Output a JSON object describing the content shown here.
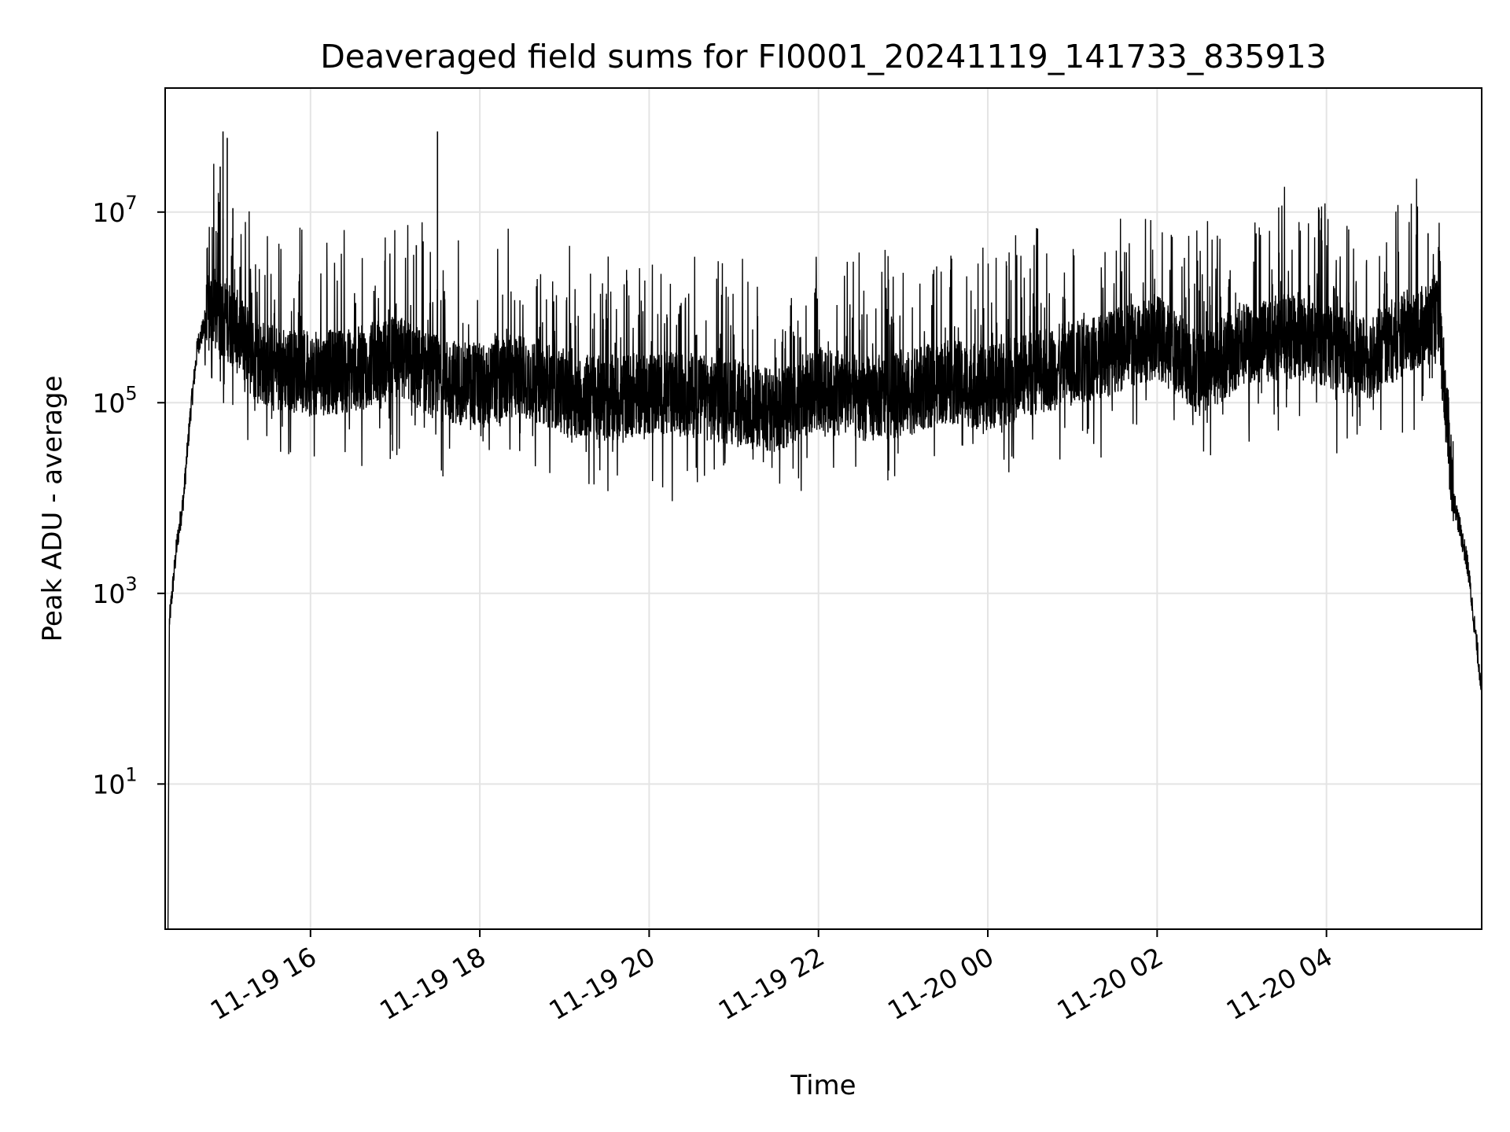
{
  "chart_data": {
    "type": "line",
    "title": "Deaveraged field sums for FI0001_20241119_141733_835913",
    "xlabel": "Time",
    "ylabel": "Peak ADU - average",
    "yscale": "log",
    "ylim": [
      0.3,
      200000000
    ],
    "xlim": [
      "2024-11-19 14:17",
      "2024-11-20 05:50"
    ],
    "grid": true,
    "line_color": "#000000",
    "x_ticks": [
      {
        "t": "2024-11-19 16:00",
        "label": "11-19 16"
      },
      {
        "t": "2024-11-19 18:00",
        "label": "11-19 18"
      },
      {
        "t": "2024-11-19 20:00",
        "label": "11-19 20"
      },
      {
        "t": "2024-11-19 22:00",
        "label": "11-19 22"
      },
      {
        "t": "2024-11-20 00:00",
        "label": "11-20 00"
      },
      {
        "t": "2024-11-20 02:00",
        "label": "11-20 02"
      },
      {
        "t": "2024-11-20 04:00",
        "label": "11-20 04"
      }
    ],
    "y_ticks": [
      {
        "value": 10,
        "base": "10",
        "exp": "1"
      },
      {
        "value": 1000,
        "base": "10",
        "exp": "3"
      },
      {
        "value": 100000,
        "base": "10",
        "exp": "5"
      },
      {
        "value": 10000000,
        "base": "10",
        "exp": "7"
      }
    ],
    "series": [
      {
        "x": [
          "2024-11-19 14:20",
          "2024-11-19 14:25",
          "2024-11-19 14:30",
          "2024-11-19 14:35",
          "2024-11-19 14:40",
          "2024-11-19 14:50",
          "2024-11-19 15:00",
          "2024-11-19 15:10",
          "2024-11-19 15:20",
          "2024-11-19 15:30",
          "2024-11-19 16:00",
          "2024-11-19 16:30",
          "2024-11-19 17:00",
          "2024-11-19 17:30",
          "2024-11-19 18:00",
          "2024-11-19 18:30",
          "2024-11-19 19:00",
          "2024-11-19 19:30",
          "2024-11-19 20:00",
          "2024-11-19 20:30",
          "2024-11-19 21:00",
          "2024-11-19 21:30",
          "2024-11-19 22:00",
          "2024-11-19 22:30",
          "2024-11-19 23:00",
          "2024-11-19 23:30",
          "2024-11-20 00:00",
          "2024-11-20 00:30",
          "2024-11-20 01:00",
          "2024-11-20 01:30",
          "2024-11-20 02:00",
          "2024-11-20 02:30",
          "2024-11-20 03:00",
          "2024-11-20 03:30",
          "2024-11-20 04:00",
          "2024-11-20 04:30",
          "2024-11-20 05:00",
          "2024-11-20 05:20",
          "2024-11-20 05:30",
          "2024-11-20 05:40",
          "2024-11-20 05:50"
        ],
        "y": [
          500,
          3000,
          10000,
          80000,
          400000,
          1000000,
          800000,
          500000,
          300000,
          250000,
          200000,
          220000,
          300000,
          180000,
          150000,
          200000,
          130000,
          110000,
          130000,
          120000,
          100000,
          80000,
          140000,
          110000,
          120000,
          170000,
          140000,
          200000,
          260000,
          350000,
          500000,
          200000,
          400000,
          500000,
          400000,
          300000,
          600000,
          700000,
          10000,
          2000,
          100
        ]
      }
    ],
    "spikes": [
      {
        "x": "2024-11-19 14:58",
        "y": 70000000
      },
      {
        "x": "2024-11-19 15:01",
        "y": 60000000
      },
      {
        "x": "2024-11-19 14:56",
        "y": 30000000
      },
      {
        "x": "2024-11-19 15:05",
        "y": 11000000
      },
      {
        "x": "2024-11-19 17:30",
        "y": 70000000
      },
      {
        "x": "2024-11-19 17:15",
        "y": 4500000
      },
      {
        "x": "2024-11-20 05:12",
        "y": 6000000
      }
    ]
  }
}
